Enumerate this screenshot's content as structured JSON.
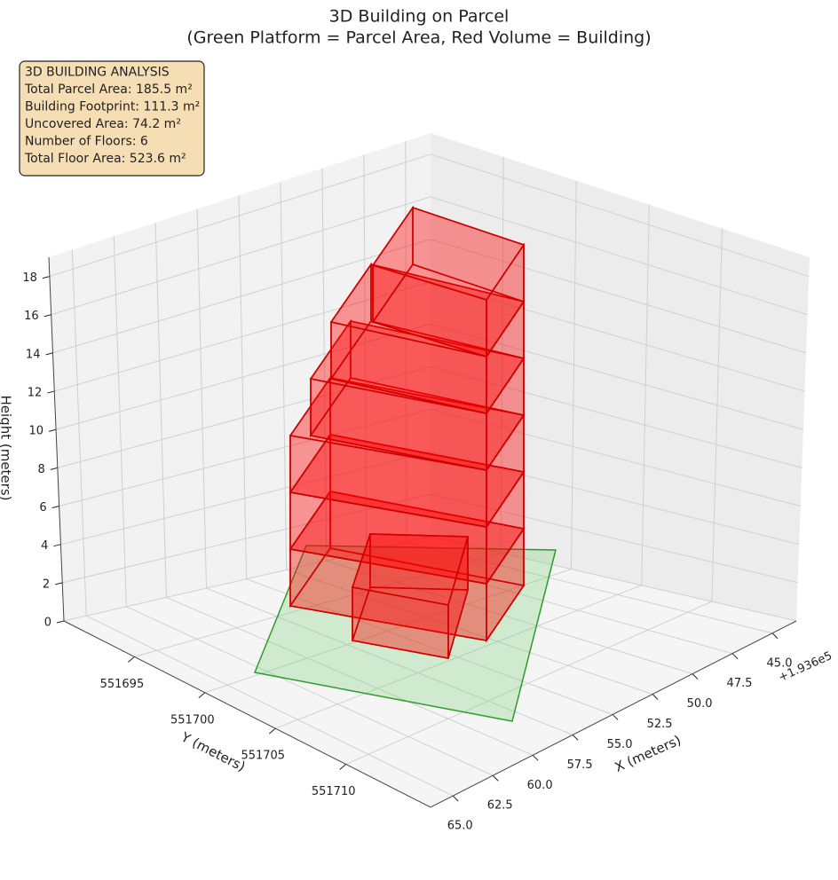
{
  "chart_data": {
    "type": "3d",
    "title": "3D Building on Parcel",
    "subtitle": "(Green Platform = Parcel Area, Red Volume = Building)",
    "info_box": [
      "3D BUILDING ANALYSIS",
      "Total Parcel Area: 185.5 m²",
      "Building Footprint: 111.3 m²",
      "Uncovered Area: 74.2 m²",
      "Number of Floors: 6",
      "Total Floor Area: 523.6 m²"
    ],
    "xlabel": "X (meters)",
    "ylabel": "Y (meters)",
    "zlabel": "Height (meters)",
    "x_offset_label": "+1.936e5",
    "xlim": [
      43.5,
      66.4
    ],
    "xticks": [
      {
        "value": 45,
        "label": "45.0"
      },
      47.5,
      {
        "value": 50,
        "label": "50.0"
      },
      52.5,
      {
        "value": 55,
        "label": "55.0"
      },
      57.5,
      {
        "value": 60,
        "label": "60.0"
      },
      62.5,
      {
        "value": 65,
        "label": "65.0"
      }
    ],
    "ylim": [
      551690,
      551716
    ],
    "yticks": [
      551695,
      551700,
      551705,
      551710
    ],
    "zlim": [
      0,
      19
    ],
    "zticks": [
      0,
      2,
      4,
      6,
      8,
      10,
      12,
      14,
      16,
      18
    ],
    "grid": true
  }
}
